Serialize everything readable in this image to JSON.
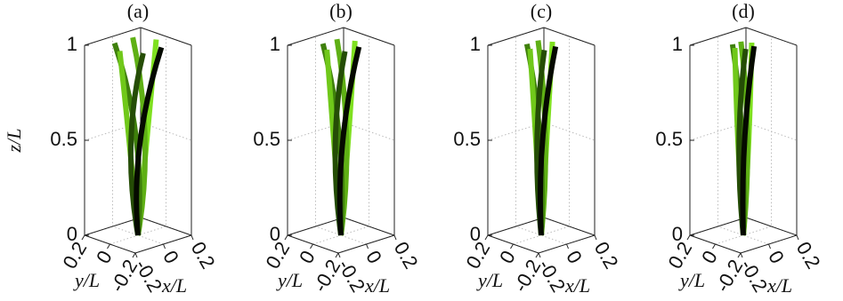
{
  "chart_data": [
    {
      "type": "line3d",
      "title": "(a)",
      "zlabel": "z/L",
      "xlabel": "x/L",
      "ylabel": "y/L",
      "xlim": [
        -0.2,
        0.2
      ],
      "ylim": [
        -0.2,
        0.2
      ],
      "zlim": [
        0,
        1
      ],
      "xticks": [
        -0.2,
        0,
        0.2
      ],
      "yticks": [
        -0.2,
        0,
        0.2
      ],
      "zticks": [
        0,
        0.5,
        1
      ],
      "grid": true,
      "z": [
        0,
        0.5,
        1
      ],
      "series": [
        {
          "color": "#7fe020",
          "x": [
            0,
            0.025,
            0.13
          ],
          "y": [
            0,
            -0.043,
            0
          ]
        },
        {
          "color": "#5fb015",
          "x": [
            0,
            0.05,
            0.065
          ],
          "y": [
            0,
            0,
            0.113
          ]
        },
        {
          "color": "#3f800c",
          "x": [
            0,
            0.025,
            -0.065
          ],
          "y": [
            0,
            0.043,
            0.113
          ]
        },
        {
          "color": "#70c81a",
          "x": [
            0,
            -0.025,
            -0.13
          ],
          "y": [
            0,
            0.043,
            0
          ]
        },
        {
          "color": "#254d06",
          "x": [
            0,
            -0.05,
            -0.065
          ],
          "y": [
            0,
            0,
            -0.113
          ]
        },
        {
          "color": "#050a00",
          "x": [
            0,
            -0.025,
            0.065
          ],
          "y": [
            0,
            -0.043,
            -0.113
          ]
        }
      ]
    },
    {
      "type": "line3d",
      "title": "(b)",
      "xlabel": "x/L",
      "ylabel": "y/L",
      "xlim": [
        -0.2,
        0.2
      ],
      "ylim": [
        -0.2,
        0.2
      ],
      "zlim": [
        0,
        1
      ],
      "xticks": [
        -0.2,
        0,
        0.2
      ],
      "yticks": [
        -0.2,
        0,
        0.2
      ],
      "zticks": [
        0,
        0.5,
        1
      ],
      "grid": true,
      "z": [
        0,
        0.5,
        1
      ],
      "series": [
        {
          "color": "#7fe020",
          "x": [
            0,
            0.02,
            0.1
          ],
          "y": [
            0,
            -0.035,
            0
          ]
        },
        {
          "color": "#5fb015",
          "x": [
            0,
            0.04,
            0.05
          ],
          "y": [
            0,
            0,
            0.087
          ]
        },
        {
          "color": "#3f800c",
          "x": [
            0,
            0.02,
            -0.05
          ],
          "y": [
            0,
            0.035,
            0.087
          ]
        },
        {
          "color": "#70c81a",
          "x": [
            0,
            -0.02,
            -0.1
          ],
          "y": [
            0,
            0.035,
            0
          ]
        },
        {
          "color": "#254d06",
          "x": [
            0,
            -0.04,
            -0.05
          ],
          "y": [
            0,
            0,
            -0.087
          ]
        },
        {
          "color": "#050a00",
          "x": [
            0,
            -0.02,
            0.05
          ],
          "y": [
            0,
            -0.035,
            -0.087
          ]
        }
      ]
    },
    {
      "type": "line3d",
      "title": "(c)",
      "xlabel": "x/L",
      "ylabel": "y/L",
      "xlim": [
        -0.2,
        0.2
      ],
      "ylim": [
        -0.2,
        0.2
      ],
      "zlim": [
        0,
        1
      ],
      "xticks": [
        -0.2,
        0,
        0.2
      ],
      "yticks": [
        -0.2,
        0,
        0.2
      ],
      "zticks": [
        0,
        0.5,
        1
      ],
      "grid": true,
      "z": [
        0,
        0.5,
        1
      ],
      "series": [
        {
          "color": "#7fe020",
          "x": [
            0,
            0.015,
            0.08
          ],
          "y": [
            0,
            -0.026,
            0
          ]
        },
        {
          "color": "#5fb015",
          "x": [
            0,
            0.03,
            0.04
          ],
          "y": [
            0,
            0,
            0.069
          ]
        },
        {
          "color": "#3f800c",
          "x": [
            0,
            0.015,
            -0.04
          ],
          "y": [
            0,
            0.026,
            0.069
          ]
        },
        {
          "color": "#70c81a",
          "x": [
            0,
            -0.015,
            -0.08
          ],
          "y": [
            0,
            0.026,
            0
          ]
        },
        {
          "color": "#254d06",
          "x": [
            0,
            -0.03,
            -0.04
          ],
          "y": [
            0,
            0,
            -0.069
          ]
        },
        {
          "color": "#050a00",
          "x": [
            0,
            -0.015,
            0.04
          ],
          "y": [
            0,
            -0.026,
            -0.069
          ]
        }
      ]
    },
    {
      "type": "line3d",
      "title": "(d)",
      "xlabel": "x/L",
      "ylabel": "y/L",
      "xlim": [
        -0.2,
        0.2
      ],
      "ylim": [
        -0.2,
        0.2
      ],
      "zlim": [
        0,
        1
      ],
      "xticks": [
        -0.2,
        0,
        0.2
      ],
      "yticks": [
        -0.2,
        0,
        0.2
      ],
      "zticks": [
        0,
        0.5,
        1
      ],
      "grid": true,
      "z": [
        0,
        0.5,
        1
      ],
      "series": [
        {
          "color": "#7fe020",
          "x": [
            0,
            0.015,
            0.06
          ],
          "y": [
            0,
            -0.026,
            0
          ]
        },
        {
          "color": "#5fb015",
          "x": [
            0,
            0.03,
            0.03
          ],
          "y": [
            0,
            0,
            0.052
          ]
        },
        {
          "color": "#3f800c",
          "x": [
            0,
            0.015,
            -0.03
          ],
          "y": [
            0,
            0.026,
            0.052
          ]
        },
        {
          "color": "#70c81a",
          "x": [
            0,
            -0.015,
            -0.06
          ],
          "y": [
            0,
            0.026,
            0
          ]
        },
        {
          "color": "#254d06",
          "x": [
            0,
            -0.03,
            -0.03
          ],
          "y": [
            0,
            0,
            -0.052
          ]
        },
        {
          "color": "#050a00",
          "x": [
            0,
            -0.015,
            0.03
          ],
          "y": [
            0,
            -0.026,
            -0.052
          ]
        }
      ]
    }
  ]
}
